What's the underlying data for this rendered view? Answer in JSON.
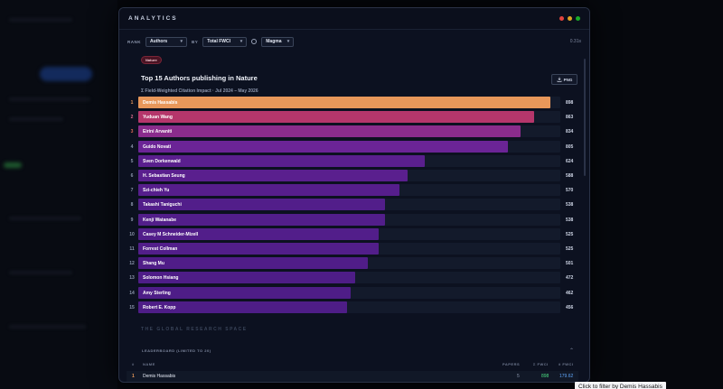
{
  "window": {
    "title": "ANALYTICS",
    "dot_colors": [
      "#e0443e",
      "#dea123",
      "#1aab29"
    ]
  },
  "toolbar": {
    "rank_label": "RANK",
    "rank_value": "Authors",
    "by_label": "BY",
    "metric_value": "Total FWCI",
    "palette_icon": "palette-icon",
    "palette_value": "Magma",
    "timing": "0.31s"
  },
  "chart": {
    "tag": "Nature",
    "title": "Top 15 Authors publishing in Nature",
    "subtitle": "Σ Field-Weighted Citation Impact · Jul 2024 – May 2026",
    "png_label": "PNG",
    "png_icon": "download-icon"
  },
  "chart_data": {
    "type": "bar",
    "orientation": "horizontal",
    "title": "Top 15 Authors publishing in Nature",
    "subtitle": "Σ Field-Weighted Citation Impact · Jul 2024 – May 2026",
    "xlim": [
      0,
      920
    ],
    "ranks": [
      "1",
      "2",
      "3",
      "4",
      "5",
      "6",
      "7",
      "8",
      "9",
      "10",
      "11",
      "12",
      "13",
      "14",
      "15"
    ],
    "categories": [
      "Demis Hassabis",
      "Yuduan Wang",
      "Eirini Arvaniti",
      "Guido Novati",
      "Sven Dorkenwald",
      "H. Sebastian Seung",
      "Szi-chieh Yu",
      "Takashi Taniguchi",
      "Kenji Watanabe",
      "Casey M Schneider-Mizell",
      "Forrest Collman",
      "Shang Mu",
      "Solomon Hsiang",
      "Amy Sterling",
      "Robert E. Kopp"
    ],
    "values": [
      898,
      863,
      834,
      805,
      624,
      588,
      570,
      538,
      538,
      525,
      525,
      501,
      472,
      462,
      456
    ],
    "value_labels": [
      "898",
      "863",
      "834",
      "805",
      "624",
      "588",
      "570",
      "538",
      "538",
      "525",
      "525",
      "501",
      "472",
      "462",
      "456"
    ],
    "colors": [
      "#e8975a",
      "#b5366b",
      "#8a2c8c",
      "#6b2496",
      "#5a1f8e",
      "#5a1f8e",
      "#561e8c",
      "#521e8a",
      "#521e8a",
      "#521e8a",
      "#521e8a",
      "#501d88",
      "#4e1d87",
      "#4e1d87",
      "#4e1d87"
    ],
    "rank_colors": [
      "#e8975a",
      "#d66a8a",
      "#e06a55",
      "#8c96ad",
      "#8c96ad",
      "#8c96ad",
      "#8c96ad",
      "#8c96ad",
      "#8c96ad",
      "#8c96ad",
      "#8c96ad",
      "#8c96ad",
      "#8c96ad",
      "#8c96ad",
      "#8c96ad"
    ]
  },
  "section": {
    "title": "THE GLOBAL RESEARCH SPACE",
    "leaderboard_label": "LEADERBOARD (LIMITED TO 20)",
    "toggle_icon": "chevron-up-icon",
    "toggle_glyph": "⌃"
  },
  "leaderboard": {
    "columns": [
      "#",
      "NAME",
      "PAPERS",
      "Σ FWCI",
      "x̄ FWCI"
    ],
    "rows": [
      {
        "rank": "1",
        "name": "Demis Hassabis",
        "papers": "5",
        "sum": "898",
        "mean": "179.62"
      }
    ]
  },
  "tooltip": "Click to filter by Demis Hassabis"
}
